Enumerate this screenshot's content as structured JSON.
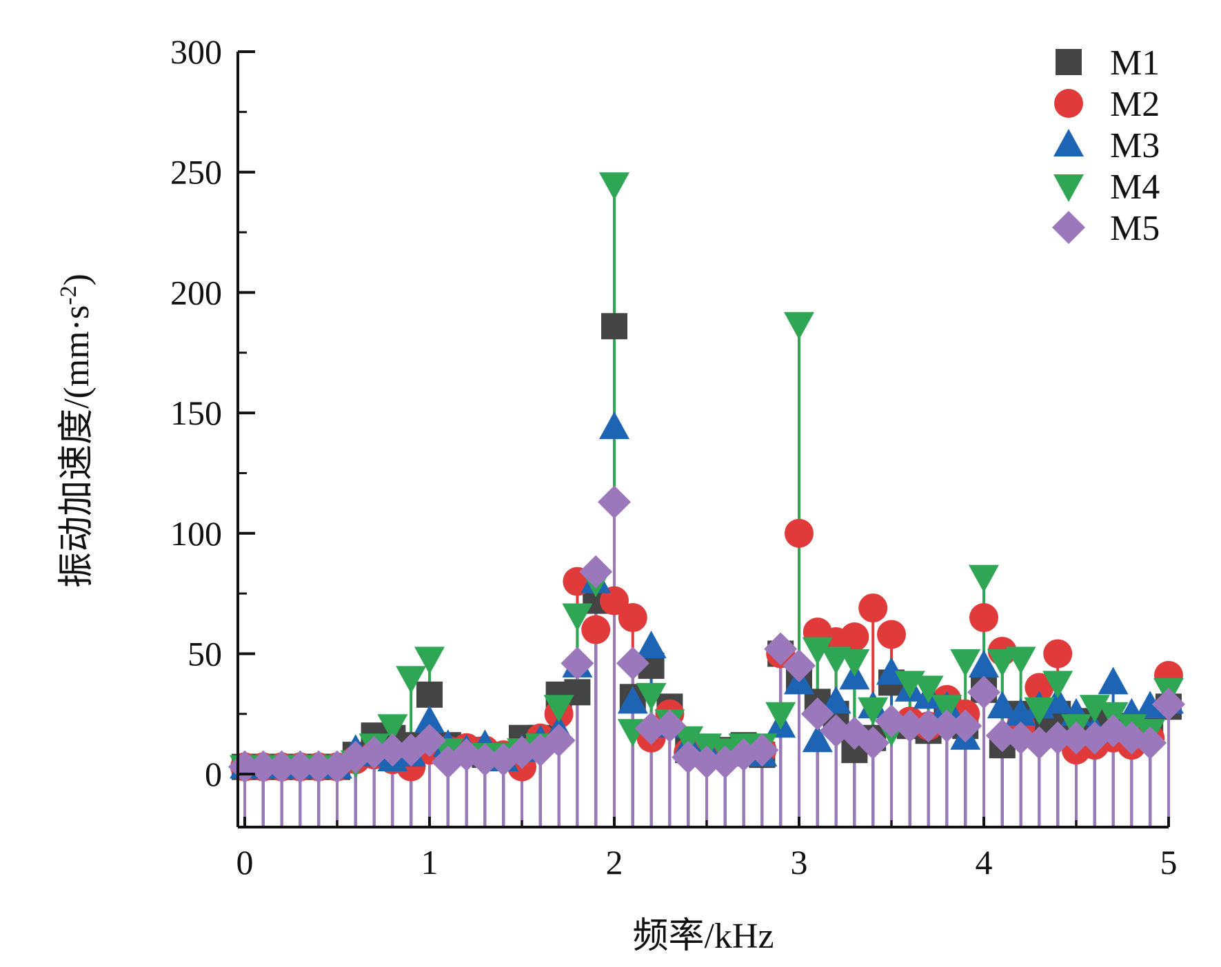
{
  "chart_data": {
    "type": "scatter",
    "style": "stem",
    "xlabel": "频率/kHz",
    "ylabel": "振动加速度/(mm·s",
    "ylabel_sup": "-2",
    "ylabel_close": ")",
    "xlim": [
      0,
      5
    ],
    "ylim": [
      -22,
      300
    ],
    "x_ticks": [
      0,
      1,
      2,
      3,
      4,
      5
    ],
    "x_tick_labels": [
      "0",
      "1",
      "2",
      "3",
      "4",
      "5"
    ],
    "y_ticks": [
      0,
      50,
      100,
      150,
      200,
      250,
      300
    ],
    "y_tick_labels": [
      "0",
      "50",
      "100",
      "150",
      "200",
      "250",
      "300"
    ],
    "legend_position": "top-right",
    "grid": false,
    "x": [
      0.0,
      0.1,
      0.2,
      0.3,
      0.4,
      0.5,
      0.6,
      0.7,
      0.8,
      0.9,
      1.0,
      1.1,
      1.2,
      1.3,
      1.4,
      1.5,
      1.6,
      1.7,
      1.8,
      1.9,
      2.0,
      2.1,
      2.2,
      2.3,
      2.4,
      2.5,
      2.6,
      2.7,
      2.8,
      2.9,
      3.0,
      3.1,
      3.2,
      3.3,
      3.4,
      3.5,
      3.6,
      3.7,
      3.8,
      3.9,
      4.0,
      4.1,
      4.2,
      4.3,
      4.4,
      4.5,
      4.6,
      4.7,
      4.8,
      4.9,
      5.0
    ],
    "series": [
      {
        "name": "M1",
        "marker": "square",
        "color": "#444444",
        "values": [
          3,
          3,
          3,
          3,
          3,
          3,
          8,
          16,
          15,
          12,
          33,
          12,
          10,
          8,
          8,
          15,
          15,
          33,
          34,
          72,
          186,
          32,
          45,
          28,
          10,
          9,
          10,
          12,
          8,
          50,
          40,
          30,
          25,
          10,
          15,
          38,
          20,
          18,
          22,
          20,
          35,
          12,
          25,
          20,
          25,
          20,
          22,
          18,
          20,
          20,
          28
        ]
      },
      {
        "name": "M2",
        "marker": "circle",
        "color": "#e03a3a",
        "values": [
          3,
          3,
          3,
          3,
          3,
          3,
          6,
          8,
          6,
          3,
          10,
          10,
          11,
          10,
          8,
          3,
          15,
          25,
          80,
          60,
          72,
          65,
          15,
          25,
          9,
          8,
          8,
          10,
          10,
          50,
          100,
          59,
          55,
          57,
          69,
          58,
          22,
          20,
          31,
          25,
          65,
          51,
          20,
          36,
          50,
          10,
          12,
          15,
          12,
          15,
          41
        ]
      },
      {
        "name": "M3",
        "marker": "triangle-up",
        "color": "#1e64b4",
        "values": [
          3,
          3,
          3,
          3,
          3,
          3,
          10,
          8,
          6,
          8,
          22,
          12,
          10,
          12,
          6,
          10,
          14,
          18,
          45,
          80,
          144,
          30,
          53,
          20,
          12,
          10,
          8,
          10,
          8,
          20,
          38,
          14,
          30,
          40,
          28,
          42,
          35,
          32,
          28,
          15,
          45,
          28,
          25,
          28,
          30,
          25,
          18,
          38,
          25,
          28,
          30
        ]
      },
      {
        "name": "M4",
        "marker": "triangle-down",
        "color": "#2ea653",
        "values": [
          3,
          3,
          3,
          3,
          3,
          3,
          5,
          12,
          20,
          40,
          48,
          10,
          8,
          8,
          8,
          10,
          12,
          28,
          66,
          80,
          245,
          18,
          33,
          22,
          15,
          12,
          10,
          12,
          12,
          25,
          187,
          52,
          48,
          47,
          27,
          18,
          38,
          36,
          28,
          47,
          82,
          47,
          48,
          27,
          38,
          20,
          28,
          25,
          20,
          18,
          35
        ]
      },
      {
        "name": "M5",
        "marker": "diamond",
        "color": "#9b78bc",
        "values": [
          3,
          3,
          3,
          3,
          3,
          3,
          7,
          9,
          10,
          10,
          14,
          5,
          8,
          6,
          6,
          9,
          10,
          14,
          46,
          84,
          113,
          46,
          19,
          20,
          7,
          5,
          5,
          8,
          10,
          52,
          45,
          25,
          18,
          17,
          13,
          22,
          20,
          20,
          20,
          20,
          34,
          16,
          15,
          13,
          15,
          15,
          15,
          18,
          15,
          13,
          29
        ]
      }
    ]
  }
}
